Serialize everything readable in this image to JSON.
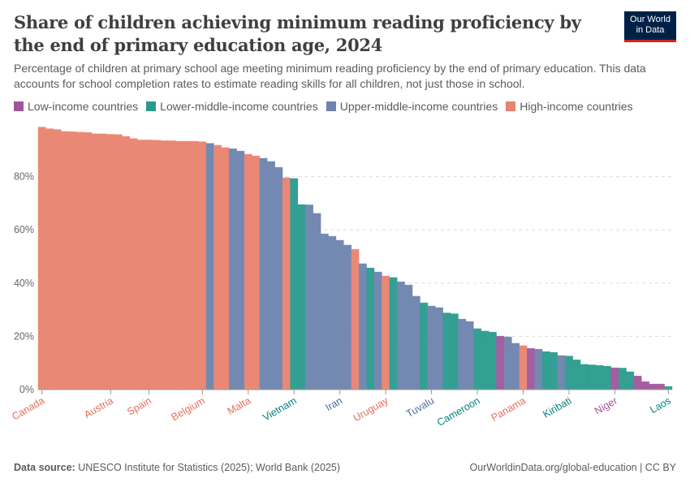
{
  "header": {
    "title": "Share of children achieving minimum reading proficiency by the end of primary education age, 2024",
    "subtitle": "Percentage of children at primary school age meeting minimum reading proficiency by the end of primary education. This data accounts for school completion rates to estimate reading skills for all children, not just those in school.",
    "logo": "Our World in Data"
  },
  "legend": [
    {
      "key": "L",
      "label": "Low-income countries",
      "color": "#a2559c"
    },
    {
      "key": "LM",
      "label": "Lower-middle-income countries",
      "color": "#2a9a8e"
    },
    {
      "key": "UM",
      "label": "Upper-middle-income countries",
      "color": "#6d83ad"
    },
    {
      "key": "H",
      "label": "High-income countries",
      "color": "#e9826f"
    }
  ],
  "label_colors": {
    "L": "#a2559c",
    "LM": "#00847e",
    "UM": "#4c6a9c",
    "H": "#e56e5a"
  },
  "footer": {
    "source_label": "Data source:",
    "source": "UNESCO Institute for Statistics (2025); World Bank (2025)",
    "url": "OurWorldinData.org/global-education | CC BY"
  },
  "chart_data": {
    "type": "bar",
    "title": "",
    "xlabel": "",
    "ylabel": "",
    "ylim": [
      0,
      100
    ],
    "yticks": [
      0,
      20,
      40,
      60,
      80
    ],
    "ytick_format": "%",
    "grid": true,
    "bars": [
      {
        "v": 98.6,
        "g": "H",
        "label": "Canada"
      },
      {
        "v": 98.0,
        "g": "H"
      },
      {
        "v": 97.7,
        "g": "H"
      },
      {
        "v": 97.0,
        "g": "H"
      },
      {
        "v": 96.9,
        "g": "H"
      },
      {
        "v": 96.7,
        "g": "H"
      },
      {
        "v": 96.6,
        "g": "H"
      },
      {
        "v": 96.1,
        "g": "H"
      },
      {
        "v": 96.1,
        "g": "H"
      },
      {
        "v": 95.9,
        "g": "H",
        "label": "Austria"
      },
      {
        "v": 95.8,
        "g": "H"
      },
      {
        "v": 95.1,
        "g": "H"
      },
      {
        "v": 94.3,
        "g": "H"
      },
      {
        "v": 93.8,
        "g": "H"
      },
      {
        "v": 93.8,
        "g": "H",
        "label": "Spain"
      },
      {
        "v": 93.7,
        "g": "H"
      },
      {
        "v": 93.5,
        "g": "H"
      },
      {
        "v": 93.5,
        "g": "H"
      },
      {
        "v": 93.3,
        "g": "H"
      },
      {
        "v": 93.3,
        "g": "H"
      },
      {
        "v": 93.3,
        "g": "H"
      },
      {
        "v": 93.1,
        "g": "H",
        "label": "Belgium"
      },
      {
        "v": 92.5,
        "g": "UM"
      },
      {
        "v": 91.8,
        "g": "H"
      },
      {
        "v": 90.9,
        "g": "H"
      },
      {
        "v": 90.5,
        "g": "UM"
      },
      {
        "v": 89.6,
        "g": "UM"
      },
      {
        "v": 88.4,
        "g": "H",
        "label": "Malta"
      },
      {
        "v": 87.8,
        "g": "H"
      },
      {
        "v": 86.9,
        "g": "UM"
      },
      {
        "v": 85.7,
        "g": "UM"
      },
      {
        "v": 83.5,
        "g": "UM"
      },
      {
        "v": 79.6,
        "g": "H"
      },
      {
        "v": 79.3,
        "g": "LM",
        "label": "Vietnam"
      },
      {
        "v": 69.5,
        "g": "LM"
      },
      {
        "v": 69.4,
        "g": "UM"
      },
      {
        "v": 66.2,
        "g": "UM"
      },
      {
        "v": 58.5,
        "g": "UM"
      },
      {
        "v": 57.6,
        "g": "UM"
      },
      {
        "v": 56.1,
        "g": "UM",
        "label": "Iran"
      },
      {
        "v": 54.3,
        "g": "UM"
      },
      {
        "v": 52.7,
        "g": "H"
      },
      {
        "v": 47.3,
        "g": "UM"
      },
      {
        "v": 45.7,
        "g": "LM"
      },
      {
        "v": 44.2,
        "g": "UM"
      },
      {
        "v": 42.7,
        "g": "H",
        "label": "Uruguay"
      },
      {
        "v": 42.1,
        "g": "LM"
      },
      {
        "v": 40.5,
        "g": "UM"
      },
      {
        "v": 39.3,
        "g": "UM"
      },
      {
        "v": 35.1,
        "g": "UM"
      },
      {
        "v": 32.6,
        "g": "LM"
      },
      {
        "v": 31.4,
        "g": "UM",
        "label": "Tuvalu"
      },
      {
        "v": 30.8,
        "g": "UM"
      },
      {
        "v": 28.8,
        "g": "LM"
      },
      {
        "v": 28.5,
        "g": "LM"
      },
      {
        "v": 26.5,
        "g": "UM"
      },
      {
        "v": 25.6,
        "g": "UM"
      },
      {
        "v": 22.9,
        "g": "LM",
        "label": "Cameroon"
      },
      {
        "v": 22.0,
        "g": "LM"
      },
      {
        "v": 21.6,
        "g": "LM"
      },
      {
        "v": 20.1,
        "g": "L"
      },
      {
        "v": 19.8,
        "g": "UM"
      },
      {
        "v": 17.4,
        "g": "UM"
      },
      {
        "v": 16.5,
        "g": "H",
        "label": "Panama"
      },
      {
        "v": 15.5,
        "g": "L"
      },
      {
        "v": 15.2,
        "g": "UM"
      },
      {
        "v": 14.3,
        "g": "LM"
      },
      {
        "v": 14.0,
        "g": "LM"
      },
      {
        "v": 12.8,
        "g": "UM"
      },
      {
        "v": 12.6,
        "g": "LM",
        "label": "Kiribati"
      },
      {
        "v": 11.2,
        "g": "LM"
      },
      {
        "v": 9.5,
        "g": "LM"
      },
      {
        "v": 9.3,
        "g": "LM"
      },
      {
        "v": 9.1,
        "g": "LM"
      },
      {
        "v": 8.8,
        "g": "LM"
      },
      {
        "v": 8.2,
        "g": "L",
        "label": "Niger"
      },
      {
        "v": 8.1,
        "g": "LM"
      },
      {
        "v": 6.7,
        "g": "LM"
      },
      {
        "v": 5.1,
        "g": "L"
      },
      {
        "v": 3.0,
        "g": "L"
      },
      {
        "v": 2.1,
        "g": "L"
      },
      {
        "v": 2.1,
        "g": "L"
      },
      {
        "v": 1.2,
        "g": "LM",
        "label": "Laos"
      }
    ]
  }
}
